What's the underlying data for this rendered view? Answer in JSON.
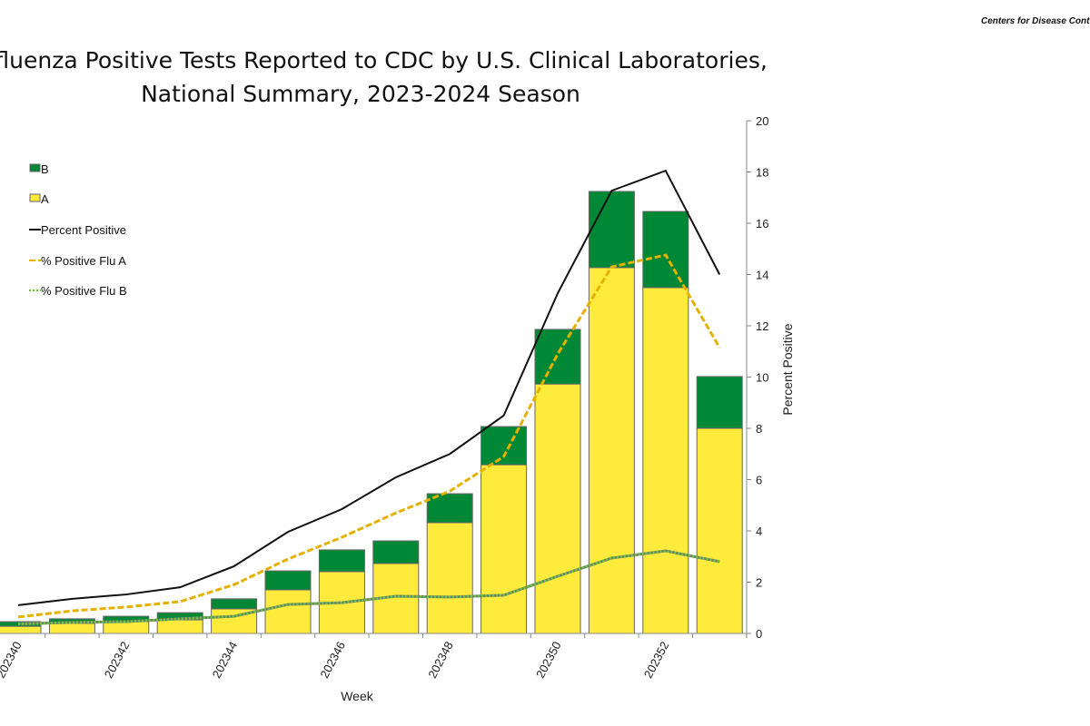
{
  "header": {
    "organization": "Centers for Disease Control and Prevention"
  },
  "chart_data": {
    "type": "bar",
    "title": "Influenza Positive Tests Reported to CDC by U.S. Clinical Laboratories,",
    "subtitle": "National Summary, 2023-2024 Season",
    "xlabel": "Week",
    "y2label": "Percent Positive",
    "y2lim": [
      0,
      20
    ],
    "y2ticks": [
      "0",
      "2",
      "4",
      "6",
      "8",
      "10",
      "12",
      "14",
      "16",
      "18",
      "20"
    ],
    "grid": false,
    "legend_placement": "left",
    "categories": [
      "202340",
      "202341",
      "202342",
      "202343",
      "202344",
      "202345",
      "202346",
      "202347",
      "202348",
      "202349",
      "202350",
      "202351",
      "202352",
      "202353"
    ],
    "x_tick_labels": [
      "202340",
      "202342",
      "202344",
      "202346",
      "202348",
      "202350",
      "202352"
    ],
    "colors": {
      "B": "#008837",
      "A": "#ffeb3b",
      "percent_positive": "#111111",
      "flu_a": "#e6b000",
      "flu_b": "#66cc33"
    },
    "stacked_bars": [
      {
        "name": "A",
        "values": [
          0.28,
          0.39,
          0.46,
          0.53,
          0.96,
          1.7,
          2.41,
          2.73,
          4.32,
          6.58,
          9.73,
          14.27,
          13.49,
          8.0
        ]
      },
      {
        "name": "B",
        "values": [
          0.18,
          0.18,
          0.21,
          0.28,
          0.39,
          0.74,
          0.85,
          0.88,
          1.13,
          1.49,
          2.13,
          2.97,
          2.97,
          2.02
        ]
      }
    ],
    "lines": [
      {
        "name": "Percent Positive",
        "values": [
          1.1,
          1.35,
          1.52,
          1.8,
          2.62,
          3.96,
          4.85,
          6.09,
          7.0,
          8.5,
          13.27,
          17.27,
          18.05,
          14.0
        ]
      },
      {
        "name": "% Positive Flu A",
        "values": [
          0.64,
          0.88,
          1.03,
          1.24,
          1.9,
          2.9,
          3.75,
          4.7,
          5.55,
          6.9,
          10.9,
          14.3,
          14.76,
          11.15
        ]
      },
      {
        "name": "% Positive Flu B",
        "values": [
          0.37,
          0.43,
          0.46,
          0.57,
          0.67,
          1.13,
          1.2,
          1.45,
          1.42,
          1.49,
          2.23,
          2.94,
          3.22,
          2.8
        ]
      }
    ],
    "legend": [
      "B",
      "A",
      "Percent Positive",
      "% Positive Flu A",
      "% Positive Flu B"
    ]
  }
}
